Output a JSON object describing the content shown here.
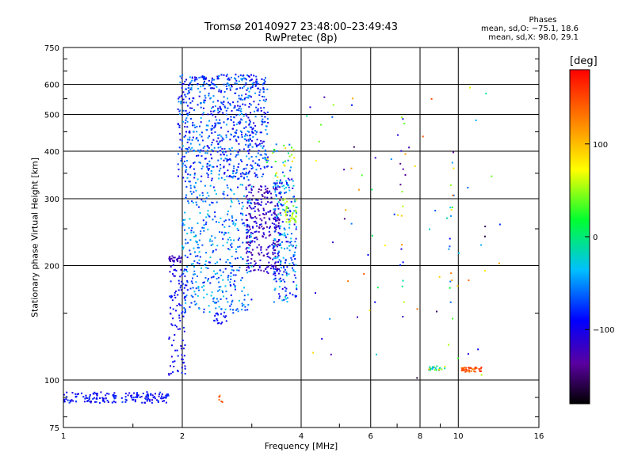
{
  "title": {
    "line1": "Tromsø 20140927 23:48:00–23:49:43",
    "line2": "RwPretec (8p)"
  },
  "phase_box": {
    "title": "Phases",
    "line1": "mean, sd,O:  −75.1, 18.6",
    "line2": "mean, sd,X:   98.0, 29.1"
  },
  "colorbar": {
    "unit": "[deg]",
    "ticks": [
      "100",
      "0",
      "−100"
    ],
    "tick_values": [
      100,
      0,
      -100
    ],
    "range": [
      -180,
      180
    ]
  },
  "chart_data": {
    "type": "scatter",
    "title": "Tromsø 20140927 23:48:00–23:49:43 RwPretec (8p)",
    "xlabel": "Frequency [MHz]",
    "ylabel": "Stationary phase Virtual Height [km]",
    "xscale": "log",
    "yscale": "log",
    "xlim": [
      1,
      16
    ],
    "ylim": [
      75,
      750
    ],
    "xticks": [
      "1",
      "2",
      "4",
      "6",
      "8",
      "10",
      "16"
    ],
    "xtick_values": [
      1,
      2,
      4,
      6,
      8,
      10,
      16
    ],
    "yticks": [
      "75",
      "100",
      "200",
      "300",
      "400",
      "500",
      "600",
      "750"
    ],
    "ytick_values": [
      75,
      100,
      200,
      300,
      400,
      500,
      600,
      750
    ],
    "grid": true,
    "color_variable": "phase [deg]",
    "point_groups": [
      {
        "name": "E-layer trace",
        "f": [
          1.0,
          1.85
        ],
        "h": [
          87,
          93
        ],
        "phase": [
          -110,
          -70
        ],
        "count": 170
      },
      {
        "name": "E-layer sporadic",
        "f": [
          2.45,
          2.55
        ],
        "h": [
          84,
          92
        ],
        "phase": [
          120,
          175
        ],
        "count": 5
      },
      {
        "name": "F1 trace",
        "f": [
          1.85,
          2.05
        ],
        "h": [
          103,
          210
        ],
        "phase": [
          -110,
          -80
        ],
        "count": 100
      },
      {
        "name": "F1 ledge",
        "f": [
          1.85,
          2.0
        ],
        "h": [
          204,
          212
        ],
        "phase": [
          -130,
          -115
        ],
        "count": 25
      },
      {
        "name": "O-mode F2 cloud",
        "f": [
          1.95,
          3.3
        ],
        "h": [
          340,
          640
        ],
        "phase": [
          -110,
          -40
        ],
        "count": 750
      },
      {
        "name": "F lower cloud",
        "f": [
          2.0,
          3.0
        ],
        "h": [
          150,
          340
        ],
        "phase": [
          -90,
          -25
        ],
        "count": 420
      },
      {
        "name": "mid-frequency trace",
        "f": [
          2.4,
          2.6
        ],
        "h": [
          140,
          150
        ],
        "phase": [
          -100,
          -80
        ],
        "count": 18
      },
      {
        "name": "X-mode cluster",
        "f": [
          2.9,
          3.55
        ],
        "h": [
          190,
          330
        ],
        "phase": [
          -145,
          -95
        ],
        "count": 280
      },
      {
        "name": "high band cluster",
        "f": [
          3.4,
          3.9
        ],
        "h": [
          160,
          340
        ],
        "phase": [
          -110,
          -20
        ],
        "count": 230
      },
      {
        "name": "green cluster",
        "f": [
          3.6,
          3.9
        ],
        "h": [
          260,
          300
        ],
        "phase": [
          40,
          70
        ],
        "count": 40
      },
      {
        "name": "F-peak band",
        "f": [
          3.2,
          3.85
        ],
        "h": [
          340,
          420
        ],
        "phase": [
          -90,
          90
        ],
        "count": 35
      },
      {
        "name": "sparse high-frequency echoes",
        "f": [
          4.0,
          13.0
        ],
        "h": [
          100,
          600
        ],
        "phase": [
          -170,
          150
        ],
        "count": 75
      },
      {
        "name": "column 7.2 MHz",
        "f": [
          7.1,
          7.35
        ],
        "h": [
          140,
          590
        ],
        "phase": [
          -150,
          120
        ],
        "count": 18
      },
      {
        "name": "column 9.6 MHz",
        "f": [
          9.5,
          9.75
        ],
        "h": [
          145,
          580
        ],
        "phase": [
          -160,
          160
        ],
        "count": 16
      },
      {
        "name": "trace 8.5 MHz",
        "f": [
          8.4,
          9.3
        ],
        "h": [
          106,
          109
        ],
        "phase": [
          -60,
          100
        ],
        "count": 25
      },
      {
        "name": "trace 10.8 MHz",
        "f": [
          10.2,
          11.5
        ],
        "h": [
          105,
          108
        ],
        "phase": [
          120,
          170
        ],
        "count": 40
      }
    ]
  }
}
